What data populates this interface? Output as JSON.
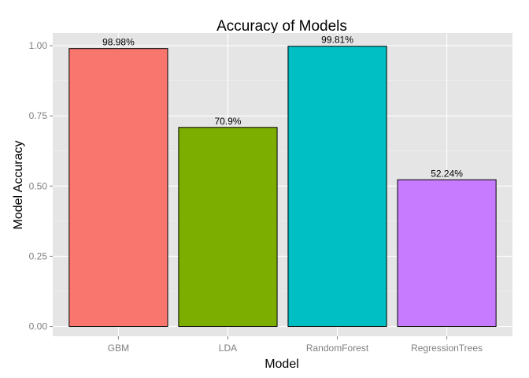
{
  "chart_data": {
    "type": "bar",
    "title": "Accuracy of Models",
    "xlabel": "Model",
    "ylabel": "Model Accuracy",
    "categories": [
      "GBM",
      "LDA",
      "RandomForest",
      "RegressionTrees"
    ],
    "values": [
      0.9898,
      0.709,
      0.9981,
      0.5224
    ],
    "data_labels": [
      "98.98%",
      "70.9%",
      "99.81%",
      "52.24%"
    ],
    "colors": [
      "#F8766D",
      "#7CAE00",
      "#00BFC4",
      "#C77CFF"
    ],
    "yticks": [
      0,
      0.25,
      0.5,
      0.75,
      1
    ],
    "ytick_labels": [
      "0.00",
      "0.25",
      "0.50",
      "0.75",
      "1.00"
    ],
    "ylim": [
      -0.035,
      1.045
    ],
    "grid": true,
    "legend": "none",
    "panel_background": "#e5e5e5"
  }
}
